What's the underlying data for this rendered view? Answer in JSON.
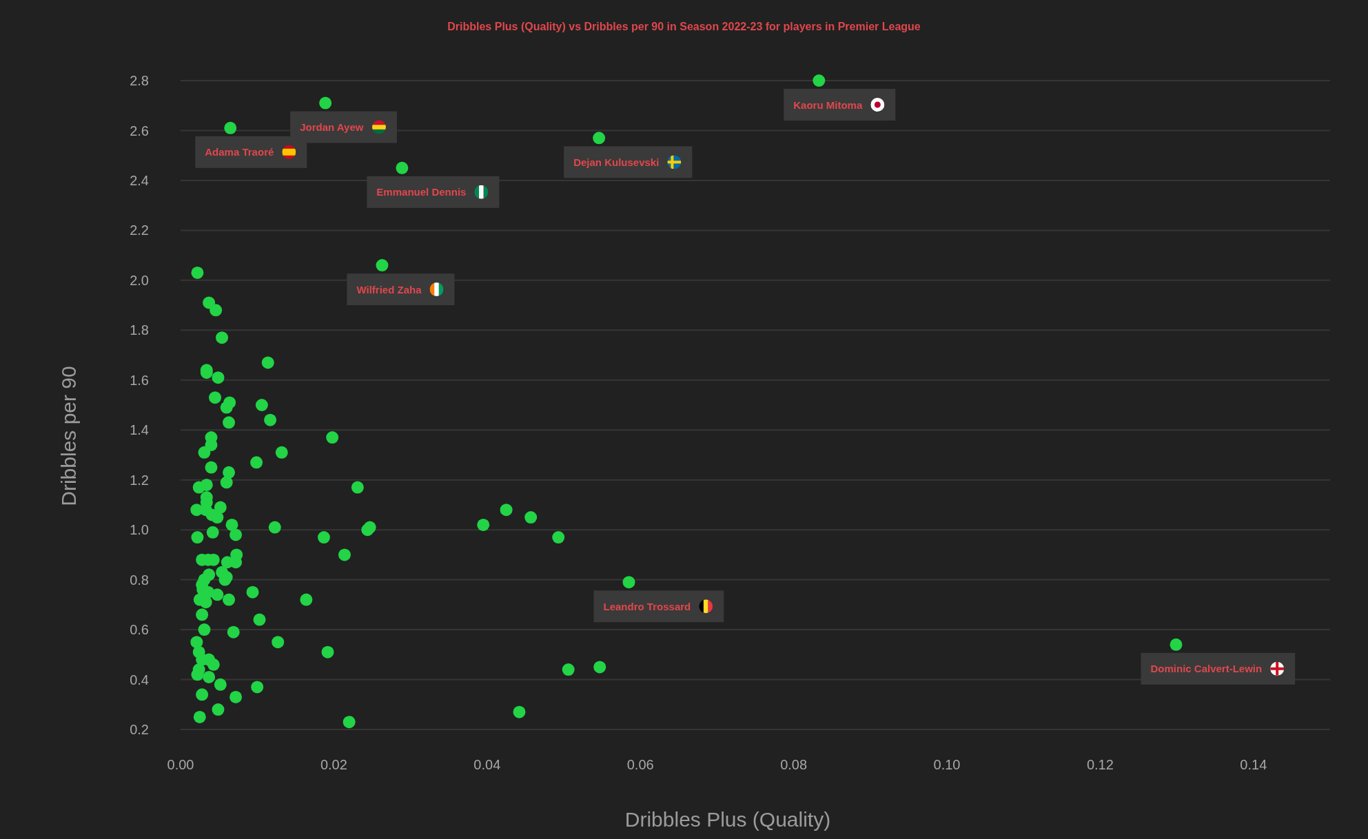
{
  "chart_data": {
    "type": "scatter",
    "title": "Dribbles Plus (Quality) vs Dribbles per 90 in Season 2022-23 for players in Premier League",
    "xlabel": "Dribbles Plus (Quality)",
    "ylabel": "Dribbles per 90",
    "color": "#22d446",
    "marker": "circle",
    "x": [
      0.0022,
      0.0037,
      0.0046,
      0.0054,
      0.0114,
      0.0034,
      0.0034,
      0.0049,
      0.0045,
      0.0064,
      0.006,
      0.0106,
      0.0117,
      0.0063,
      0.0198,
      0.004,
      0.004,
      0.0031,
      0.0132,
      0.0099,
      0.004,
      0.0063,
      0.0034,
      0.0024,
      0.006,
      0.0231,
      0.0034,
      0.0034,
      0.0052,
      0.0021,
      0.0033,
      0.0041,
      0.0048,
      0.0067,
      0.0123,
      0.0042,
      0.0072,
      0.0022,
      0.0187,
      0.0244,
      0.0247,
      0.0214,
      0.0073,
      0.0028,
      0.0036,
      0.0043,
      0.0061,
      0.0072,
      0.0037,
      0.0054,
      0.006,
      0.0058,
      0.0031,
      0.0028,
      0.0029,
      0.0036,
      0.0048,
      0.0094,
      0.0025,
      0.0033,
      0.0063,
      0.0164,
      0.0028,
      0.0103,
      0.0031,
      0.0069,
      0.0021,
      0.0127,
      0.0024,
      0.0192,
      0.0028,
      0.0037,
      0.0043,
      0.0024,
      0.0022,
      0.0037,
      0.0052,
      0.01,
      0.0028,
      0.0072,
      0.0049,
      0.0025,
      0.022,
      0.0395,
      0.0425,
      0.0457,
      0.0493,
      0.0506,
      0.0547,
      0.0442,
      0.0833,
      0.0189,
      0.0065,
      0.0546,
      0.0289,
      0.0263,
      0.0585,
      0.1299
    ],
    "values": [
      2.03,
      1.91,
      1.88,
      1.77,
      1.67,
      1.64,
      1.63,
      1.61,
      1.53,
      1.51,
      1.49,
      1.5,
      1.44,
      1.43,
      1.37,
      1.37,
      1.34,
      1.31,
      1.31,
      1.27,
      1.25,
      1.23,
      1.18,
      1.17,
      1.19,
      1.17,
      1.13,
      1.11,
      1.09,
      1.08,
      1.08,
      1.06,
      1.05,
      1.02,
      1.01,
      0.99,
      0.98,
      0.97,
      0.97,
      1.0,
      1.01,
      0.9,
      0.9,
      0.88,
      0.88,
      0.88,
      0.87,
      0.87,
      0.82,
      0.83,
      0.81,
      0.8,
      0.8,
      0.78,
      0.76,
      0.75,
      0.74,
      0.75,
      0.72,
      0.71,
      0.72,
      0.72,
      0.66,
      0.64,
      0.6,
      0.59,
      0.55,
      0.55,
      0.51,
      0.51,
      0.48,
      0.48,
      0.46,
      0.44,
      0.42,
      0.41,
      0.38,
      0.37,
      0.34,
      0.33,
      0.28,
      0.25,
      0.23,
      1.02,
      1.08,
      1.05,
      0.97,
      0.44,
      0.45,
      0.27,
      2.8,
      2.71,
      2.61,
      2.57,
      2.45,
      2.06,
      0.79,
      0.54
    ],
    "xlim": [
      0,
      0.15
    ],
    "xticks": [
      {
        "value": 0,
        "label": "0.00"
      },
      {
        "value": 0.02,
        "label": "0.02"
      },
      {
        "value": 0.04,
        "label": "0.04"
      },
      {
        "value": 0.06,
        "label": "0.06"
      },
      {
        "value": 0.08,
        "label": "0.08"
      },
      {
        "value": 0.1,
        "label": "0.10"
      },
      {
        "value": 0.12,
        "label": "0.12"
      },
      {
        "value": 0.14,
        "label": "0.14"
      }
    ],
    "ylim": [
      0.2,
      2.8
    ],
    "yticks": [
      {
        "value": 0.2,
        "label": "0.2"
      },
      {
        "value": 0.4,
        "label": "0.4"
      },
      {
        "value": 0.6,
        "label": "0.6"
      },
      {
        "value": 0.8,
        "label": "0.8"
      },
      {
        "value": 1.0,
        "label": "1.0"
      },
      {
        "value": 1.2,
        "label": "1.2"
      },
      {
        "value": 1.4,
        "label": "1.4"
      },
      {
        "value": 1.6,
        "label": "1.6"
      },
      {
        "value": 1.8,
        "label": "1.8"
      },
      {
        "value": 2.0,
        "label": "2.0"
      },
      {
        "value": 2.2,
        "label": "2.2"
      },
      {
        "value": 2.4,
        "label": "2.4"
      },
      {
        "value": 2.6,
        "label": "2.6"
      },
      {
        "value": 2.8,
        "label": "2.8"
      }
    ],
    "grid": "y",
    "annotations": [
      {
        "text": "Kaoru Mitoma",
        "x": 0.0833,
        "y": 2.8
      },
      {
        "text": "Jordan Ayew",
        "x": 0.0189,
        "y": 2.71
      },
      {
        "text": "Adama Traoré",
        "x": 0.0065,
        "y": 2.61
      },
      {
        "text": "Dejan Kulusevski",
        "x": 0.0546,
        "y": 2.57
      },
      {
        "text": "Emmanuel Dennis",
        "x": 0.0289,
        "y": 2.45
      },
      {
        "text": "Wilfried Zaha",
        "x": 0.0263,
        "y": 2.06
      },
      {
        "text": "Leandro Trossard",
        "x": 0.0585,
        "y": 0.79
      },
      {
        "text": "Dominic Calvert-Lewin",
        "x": 0.1299,
        "y": 0.54
      }
    ]
  }
}
